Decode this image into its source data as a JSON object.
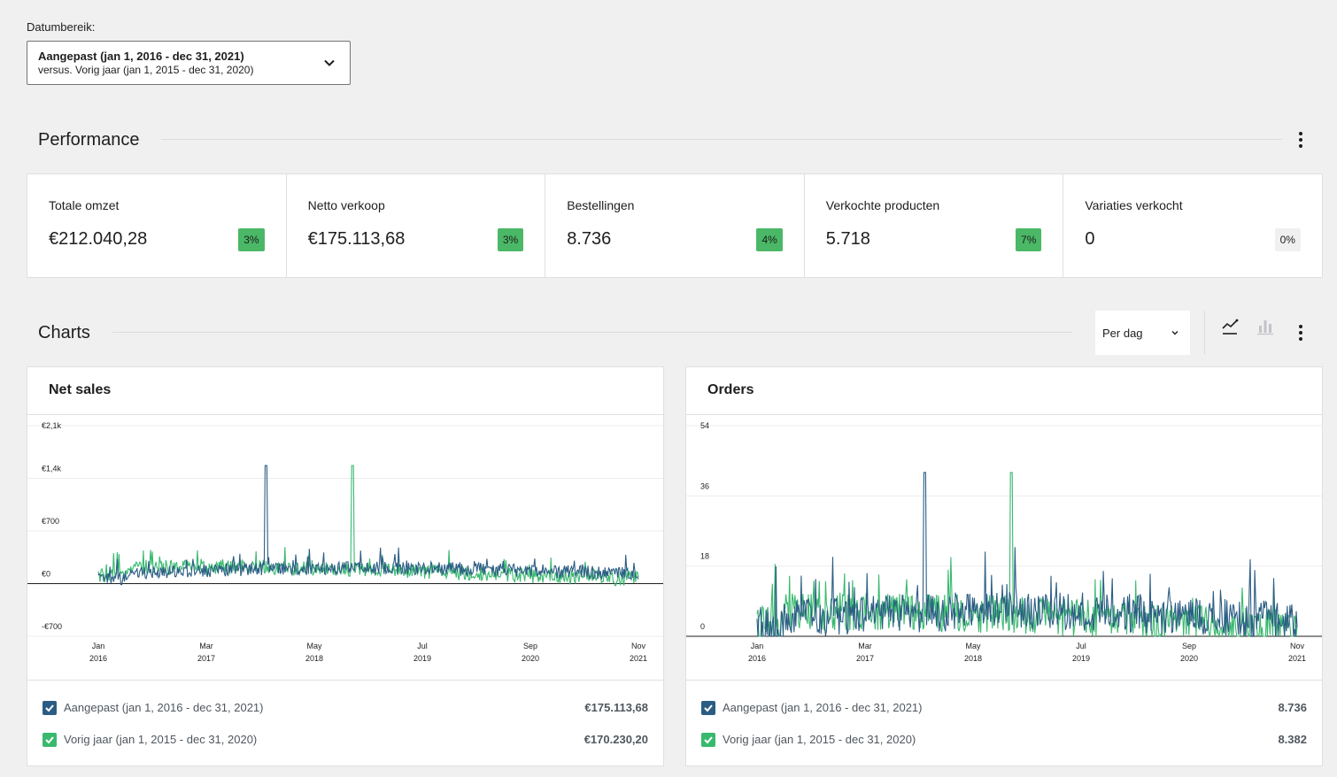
{
  "date_range": {
    "label": "Datumbereik:",
    "primary": "Aangepast (jan 1, 2016 - dec 31, 2021)",
    "secondary": "versus. Vorig jaar (jan 1, 2015 - dec 31, 2020)"
  },
  "performance": {
    "title": "Performance",
    "cards": [
      {
        "label": "Totale omzet",
        "value": "€212.040,28",
        "delta": "3%",
        "trend": "up"
      },
      {
        "label": "Netto verkoop",
        "value": "€175.113,68",
        "delta": "3%",
        "trend": "up"
      },
      {
        "label": "Bestellingen",
        "value": "8.736",
        "delta": "4%",
        "trend": "up"
      },
      {
        "label": "Verkochte producten",
        "value": "5.718",
        "delta": "7%",
        "trend": "up"
      },
      {
        "label": "Variaties verkocht",
        "value": "0",
        "delta": "0%",
        "trend": "flat"
      }
    ]
  },
  "charts_section": {
    "title": "Charts",
    "interval": "Per dag",
    "chart_type_icons": [
      "line-chart-icon",
      "bar-chart-icon"
    ]
  },
  "colors": {
    "current": "#2b5d84",
    "previous": "#38b96e",
    "delta_up": "#4ab866"
  },
  "chart_data": [
    {
      "type": "line",
      "title": "Net sales",
      "y_ticks": [
        "€2,1k",
        "€1,4k",
        "€700",
        "€0",
        "-€700"
      ],
      "ylim": [
        -700,
        2100
      ],
      "x_ticks": [
        [
          "Jan",
          "2016"
        ],
        [
          "Mar",
          "2017"
        ],
        [
          "May",
          "2018"
        ],
        [
          "Jul",
          "2019"
        ],
        [
          "Sep",
          "2020"
        ],
        [
          "Nov",
          "2021"
        ]
      ],
      "series": [
        {
          "name": "Aangepast (jan 1, 2016 - dec 31, 2021)",
          "total": "€175.113,68",
          "baseline": 130,
          "noise": 90,
          "spike_at": 0.31,
          "spike": 1570
        },
        {
          "name": "Vorig jaar (jan 1, 2015 - dec 31, 2020)",
          "total": "€170.230,20",
          "baseline": 140,
          "noise": 100,
          "spike_at": 0.47,
          "spike": 1570
        }
      ]
    },
    {
      "type": "line",
      "title": "Orders",
      "y_ticks": [
        "54",
        "36",
        "18",
        "0"
      ],
      "ylim": [
        0,
        54
      ],
      "x_ticks": [
        [
          "Jan",
          "2016"
        ],
        [
          "Mar",
          "2017"
        ],
        [
          "May",
          "2018"
        ],
        [
          "Jul",
          "2019"
        ],
        [
          "Sep",
          "2020"
        ],
        [
          "Nov",
          "2021"
        ]
      ],
      "series": [
        {
          "name": "Aangepast (jan 1, 2016 - dec 31, 2021)",
          "total": "8.736",
          "baseline": 4,
          "noise": 5,
          "spike_at": 0.31,
          "spike": 42
        },
        {
          "name": "Vorig jaar (jan 1, 2015 - dec 31, 2020)",
          "total": "8.382",
          "baseline": 4,
          "noise": 5,
          "spike_at": 0.47,
          "spike": 42
        }
      ]
    }
  ]
}
